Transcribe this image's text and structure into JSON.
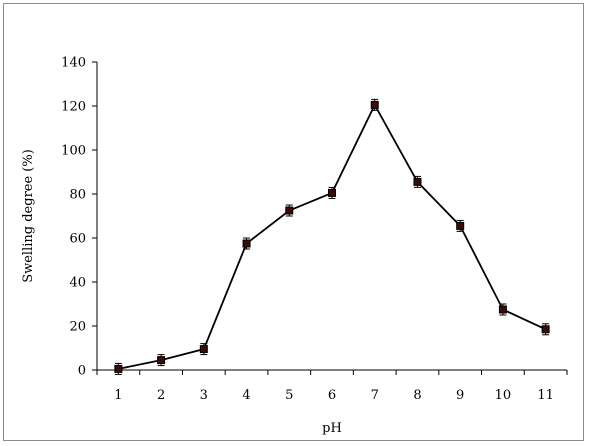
{
  "chart_data": {
    "type": "line",
    "xlabel": "pH",
    "ylabel": "Swelling degree (%)",
    "x": [
      1,
      2,
      3,
      4,
      5,
      6,
      7,
      8,
      9,
      10,
      11
    ],
    "series": [
      {
        "values": [
          0.5,
          4.5,
          9.5,
          57.5,
          72.5,
          80.5,
          120.5,
          85.5,
          65.5,
          27.5,
          18.5
        ],
        "errors": [
          2.5,
          2.5,
          2.5,
          2.5,
          2.5,
          2.5,
          2.5,
          2.5,
          2.5,
          2.5,
          2.5
        ]
      }
    ],
    "ylim": [
      0,
      140
    ],
    "yticks": [
      0,
      20,
      40,
      60,
      80,
      100,
      120,
      140
    ],
    "xticks": [
      1,
      2,
      3,
      4,
      5,
      6,
      7,
      8,
      9,
      10,
      11
    ],
    "grid": false,
    "legend": "none",
    "colors": {
      "line": "#000000",
      "marker_fill": "#3a0b0b",
      "marker_edge": "#000000"
    }
  }
}
